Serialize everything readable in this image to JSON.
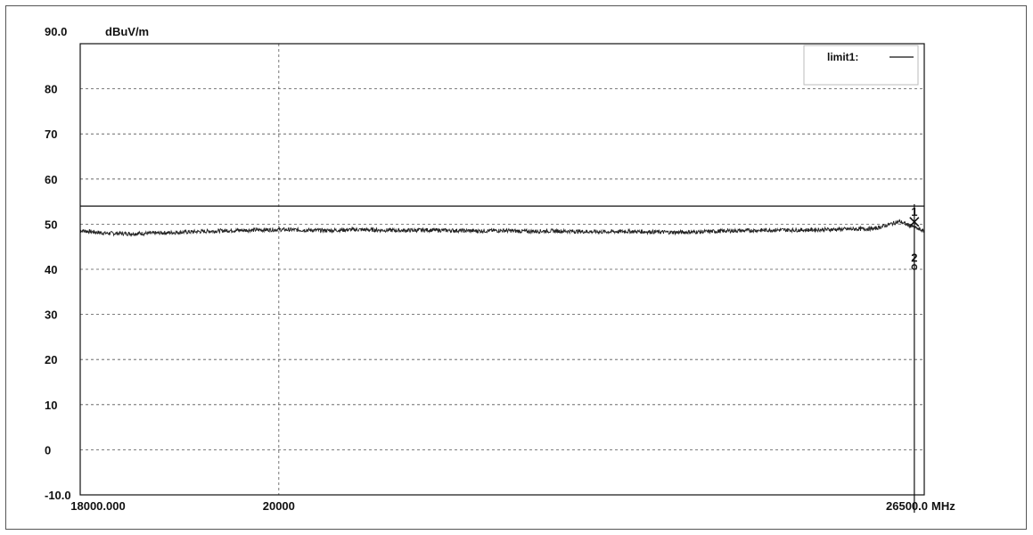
{
  "chart_data": {
    "type": "line",
    "top_label": "90.0",
    "y_unit": "dBuV/m",
    "x_unit": "MHz",
    "xlim": [
      18000,
      26500
    ],
    "ylim": [
      -10,
      90
    ],
    "y_ticks": [
      {
        "value": 80,
        "label": "80"
      },
      {
        "value": 70,
        "label": "70"
      },
      {
        "value": 60,
        "label": "60"
      },
      {
        "value": 50,
        "label": "50"
      },
      {
        "value": 40,
        "label": "40"
      },
      {
        "value": 30,
        "label": "30"
      },
      {
        "value": 20,
        "label": "20"
      },
      {
        "value": 10,
        "label": "10"
      },
      {
        "value": 0,
        "label": "0"
      },
      {
        "value": -10,
        "label": "-10.0"
      }
    ],
    "x_ticks": [
      {
        "value": 18000,
        "label": "18000.000"
      },
      {
        "value": 20000,
        "label": "20000"
      },
      {
        "value": 26500,
        "label": "26500.0"
      }
    ],
    "grid": true,
    "legend": {
      "position": "top-right",
      "label": "limit1:"
    },
    "limit": {
      "name": "limit1:",
      "value": 54
    },
    "series": [
      {
        "color": "#222222",
        "x": [
          18000,
          18250,
          18500,
          18750,
          19000,
          19250,
          19500,
          19750,
          20000,
          20250,
          20500,
          20750,
          21000,
          21250,
          21500,
          21750,
          22000,
          22250,
          22500,
          22750,
          23000,
          23250,
          23500,
          23750,
          24000,
          24250,
          24500,
          24750,
          25000,
          25250,
          25500,
          25750,
          26000,
          26250,
          26500
        ],
        "y": [
          48.6,
          48.0,
          47.9,
          48.0,
          48.2,
          48.4,
          48.6,
          48.7,
          48.8,
          48.7,
          48.6,
          48.8,
          48.7,
          48.6,
          48.7,
          48.6,
          48.5,
          48.6,
          48.4,
          48.5,
          48.4,
          48.3,
          48.4,
          48.3,
          48.2,
          48.3,
          48.5,
          48.6,
          48.7,
          48.7,
          48.8,
          48.9,
          49.0,
          50.6,
          48.4
        ]
      }
    ],
    "markers": [
      {
        "label": "1",
        "symbol": "x",
        "x": 26400,
        "y": 50.5
      },
      {
        "label": "2",
        "symbol": "o",
        "x": 26400,
        "y": 40.5
      }
    ],
    "vertical_line_x": 26400
  }
}
